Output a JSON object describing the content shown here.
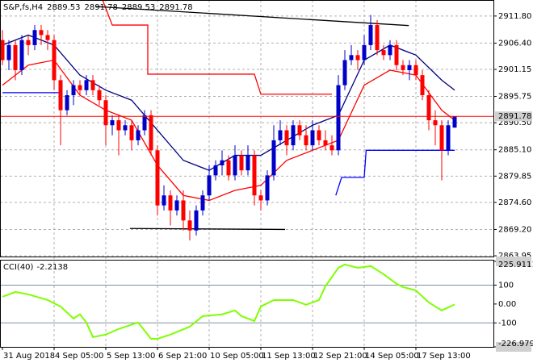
{
  "chart_data": [
    {
      "type": "candlestick",
      "title": "S&P,fs,H4",
      "categories": [
        "31 Aug 2018",
        null,
        null,
        null,
        null,
        null,
        null,
        null,
        "4 Sep 05:00",
        null,
        null,
        null,
        null,
        null,
        null,
        null,
        "5 Sep 13:00",
        null,
        null,
        null,
        null,
        null,
        null,
        null,
        "6 Sep 21:00",
        null,
        null,
        null,
        null,
        null,
        null,
        null,
        "10 Sep 05:00",
        null,
        null,
        null,
        null,
        null,
        null,
        null,
        "11 Sep 13:00",
        null,
        null,
        null,
        null,
        null,
        null,
        null,
        "12 Sep 21:00",
        null,
        null,
        null,
        null,
        null,
        null,
        null,
        "14 Sep 05:00",
        null,
        null,
        null,
        null,
        null,
        null,
        null,
        "17 Sep 13:00",
        null,
        null,
        null,
        null,
        null,
        null
      ],
      "open": [
        2907,
        2903,
        2906,
        2901,
        2907,
        2906,
        2909,
        2908,
        2907,
        2899,
        2893,
        2896,
        2898,
        2897,
        2899,
        2897,
        2895,
        2890,
        2891,
        2889,
        2890,
        2887,
        2889,
        2892,
        2885,
        2874,
        2876,
        2873,
        2875,
        2871,
        2869,
        2873,
        2876,
        2880,
        2882,
        2883,
        2880,
        2884,
        2881,
        2884,
        2876,
        2875,
        2880,
        2887,
        2889,
        2886,
        2890,
        2888,
        2886,
        2889,
        2887,
        2886,
        2885,
        2898,
        2903,
        2904,
        2903,
        2906,
        2910,
        2905,
        2904,
        2906,
        2902,
        2901,
        2902,
        2900,
        2896,
        2891,
        2890,
        2885,
        2889.53
      ],
      "high": [
        2909,
        2907,
        2907,
        2908,
        2908,
        2910,
        2910,
        2909,
        2908,
        2900,
        2897,
        2899,
        2899,
        2900,
        2900,
        2898,
        2896,
        2892,
        2892,
        2891,
        2891,
        2890,
        2893,
        2893,
        2886,
        2878,
        2877,
        2876,
        2877,
        2873,
        2874,
        2877,
        2882,
        2883,
        2885,
        2884,
        2886,
        2885,
        2886,
        2885,
        2877,
        2881,
        2890,
        2891,
        2890,
        2891,
        2891,
        2890,
        2891,
        2890,
        2889,
        2888,
        2900,
        2905,
        2906,
        2905,
        2908,
        2912,
        2911,
        2906,
        2907,
        2907,
        2903,
        2903,
        2903,
        2901,
        2897,
        2893,
        2891,
        2891,
        2891.78
      ],
      "low": [
        2902,
        2901,
        2899,
        2900,
        2904,
        2905,
        2906,
        2905,
        2897,
        2886,
        2892,
        2894,
        2896,
        2896,
        2896,
        2894,
        2886,
        2888,
        2884,
        2888,
        2885,
        2886,
        2888,
        2884,
        2872,
        2873,
        2870,
        2872,
        2869,
        2867,
        2868,
        2872,
        2875,
        2879,
        2880,
        2879,
        2879,
        2880,
        2880,
        2874,
        2873,
        2874,
        2879,
        2886,
        2884,
        2885,
        2887,
        2885,
        2885,
        2886,
        2885,
        2884,
        2884,
        2897,
        2902,
        2901,
        2902,
        2905,
        2904,
        2903,
        2903,
        2901,
        2900,
        2899,
        2899,
        2895,
        2889,
        2886,
        2879,
        2884,
        2889.53
      ],
      "close": [
        2903,
        2906,
        2901,
        2907,
        2906,
        2909,
        2908,
        2907,
        2899,
        2893,
        2896,
        2898,
        2897,
        2899,
        2897,
        2895,
        2890,
        2891,
        2889,
        2890,
        2887,
        2889,
        2892,
        2885,
        2874,
        2876,
        2873,
        2875,
        2871,
        2869,
        2873,
        2876,
        2880,
        2882,
        2883,
        2880,
        2884,
        2881,
        2884,
        2876,
        2875,
        2880,
        2887,
        2889,
        2886,
        2890,
        2888,
        2886,
        2889,
        2887,
        2886,
        2885,
        2898,
        2903,
        2904,
        2903,
        2906,
        2910,
        2905,
        2904,
        2906,
        2902,
        2901,
        2902,
        2900,
        2896,
        2891,
        2890,
        2885,
        2890,
        2891.78
      ],
      "up_color": "#0000c8",
      "down_color": "#ff0000",
      "lines": [
        {
          "color": "#000080",
          "x": [
            0,
            4,
            8,
            12,
            16,
            20,
            24,
            28,
            32,
            36,
            40,
            44,
            48,
            52,
            56,
            60,
            64,
            68,
            70
          ],
          "values": [
            2906,
            2908,
            2906,
            2900,
            2897,
            2895,
            2889,
            2883,
            2881,
            2884,
            2884,
            2887,
            2890,
            2892,
            2903,
            2906,
            2904,
            2899,
            2897
          ]
        },
        {
          "color": "#ff0000",
          "x": [
            0,
            4,
            8,
            12,
            16,
            20,
            24,
            28,
            32,
            36,
            40,
            44,
            48,
            52,
            56,
            60,
            64,
            68,
            70
          ],
          "values": [
            2898,
            2902,
            2903,
            2896,
            2893,
            2891,
            2882,
            2876,
            2875,
            2877,
            2878,
            2883,
            2885,
            2887,
            2898,
            2901,
            2900,
            2893,
            2891
          ]
        },
        {
          "color": "#ff0000",
          "x": [
            15.5,
            17,
            22.5,
            22.5,
            39,
            40,
            51
          ],
          "values": [
            2915,
            2910,
            2910,
            2900.2,
            2900.2,
            2896.2,
            2896.2
          ]
        },
        {
          "color": "#0000ff",
          "x": [
            0,
            9
          ],
          "values": [
            2896.5,
            2896.5
          ]
        },
        {
          "color": "#0000ff",
          "x": [
            51.6,
            52.5,
            56,
            56.3,
            70
          ],
          "values": [
            2876,
            2879.6,
            2879.6,
            2885,
            2885
          ]
        },
        {
          "color": "#000000",
          "x": [
            14.4,
            62.9
          ],
          "values": [
            2913.7,
            2909.9
          ]
        },
        {
          "color": "#000000",
          "x": [
            19.75,
            43.75
          ],
          "values": [
            2869.4,
            2869.2
          ]
        }
      ],
      "ylim": [
        2863.8,
        2915.0
      ],
      "yticks": [
        {
          "value": 2911.8,
          "label": "2911.80"
        },
        {
          "value": 2906.4,
          "label": "2906.40"
        },
        2901.15,
        2895.75,
        {
          "value": 2890.5,
          "label": "2890.50"
        },
        {
          "value": 2885.1,
          "label": "2885.10"
        },
        2879.85,
        {
          "value": 2874.6,
          "label": "2874.60"
        },
        {
          "value": 2869.2,
          "label": "2869.20"
        },
        2863.95
      ],
      "grid": true
    },
    {
      "type": "line",
      "title": "CCI(40)",
      "color": "#7fff00",
      "x": [
        0,
        2,
        4,
        7,
        9,
        11,
        12,
        13,
        14,
        16,
        18,
        21,
        22,
        23,
        24,
        26,
        29,
        31,
        34,
        36,
        37,
        39,
        40,
        42,
        45,
        47,
        49,
        50,
        52,
        53,
        55,
        57,
        59,
        61,
        62,
        64,
        66,
        68,
        70
      ],
      "values": [
        38,
        64,
        51,
        21,
        -13,
        -77,
        -55,
        -98,
        -175,
        -162,
        -132,
        -98,
        -141,
        -184,
        -184,
        -162,
        -120,
        -64,
        -55,
        -34,
        -64,
        -90,
        -13,
        21,
        21,
        -4,
        21,
        94,
        192,
        209,
        192,
        201,
        158,
        107,
        90,
        72,
        8,
        -34,
        -2.2138
      ],
      "ylim": [
        -226.9796,
        225.9111
      ],
      "yticks": [
        225.9111,
        100,
        {
          "value": 0,
          "label": "0.00"
        },
        -100,
        -226.9796
      ],
      "levels": [
        100,
        -100
      ]
    }
  ]
}
